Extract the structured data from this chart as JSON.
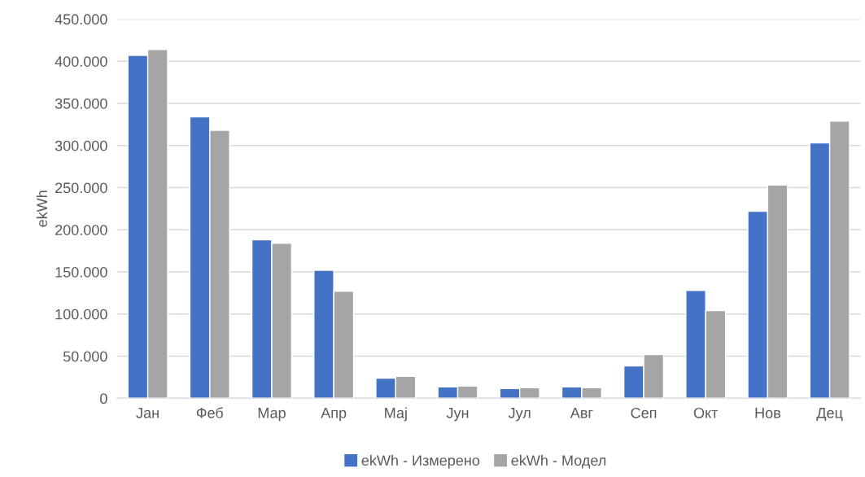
{
  "chart_data": {
    "type": "bar",
    "ylabel": "ekWh",
    "categories": [
      "Јан",
      "Феб",
      "Мар",
      "Апр",
      "Мај",
      "Јун",
      "Јул",
      "Авг",
      "Сеп",
      "Окт",
      "Нов",
      "Дец"
    ],
    "series": [
      {
        "name": "ekWh - Измерено",
        "color": "#4472c4",
        "values": [
          407000,
          334000,
          188000,
          152000,
          24000,
          13500,
          11500,
          13500,
          38500,
          128000,
          222000,
          303000
        ]
      },
      {
        "name": "ekWh - Модел",
        "color": "#a5a5a5",
        "values": [
          414000,
          318000,
          184000,
          127000,
          26000,
          14500,
          12500,
          12500,
          52000,
          104000,
          253000,
          329000
        ]
      }
    ],
    "ylim": [
      0,
      450000
    ],
    "yticks": [
      0,
      {
        "value": 50000,
        "label": "50.000"
      },
      {
        "value": 100000,
        "label": "100.000"
      },
      {
        "value": 150000,
        "label": "150.000"
      },
      {
        "value": 200000,
        "label": "200.000"
      },
      {
        "value": 250000,
        "label": "250.000"
      },
      {
        "value": 300000,
        "label": "300.000"
      },
      {
        "value": 350000,
        "label": "350.000"
      },
      {
        "value": 400000,
        "label": "400.000"
      },
      {
        "value": 450000,
        "label": "450.000"
      }
    ],
    "grid": "y",
    "legend": "bottom"
  }
}
